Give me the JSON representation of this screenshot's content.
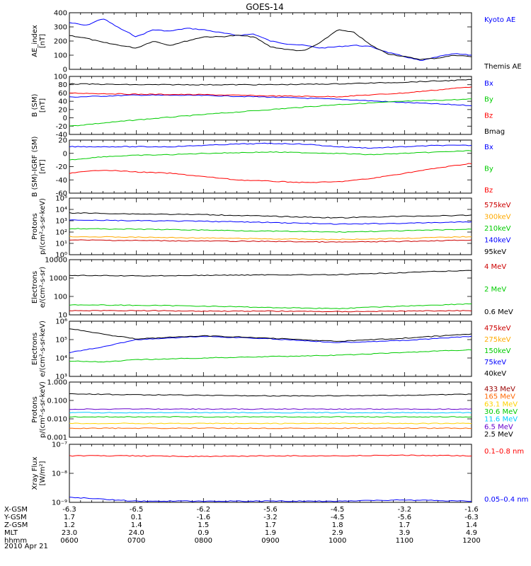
{
  "title": "GOES-14",
  "date": "2010 Apr 21",
  "time_labels": [
    "0600",
    "0700",
    "0800",
    "0900",
    "1000",
    "1100",
    "1200"
  ],
  "orbit_table": {
    "row_labels": [
      "X-GSM",
      "Y-GSM",
      "Z-GSM",
      "MLT",
      "hhmm"
    ],
    "rows": [
      [
        "-6.3",
        "-6.5",
        "-6.2",
        "-5.6",
        "-4.5",
        "-3.2",
        "-1.6"
      ],
      [
        "1.7",
        "0.1",
        "-1.6",
        "-3.2",
        "-4.5",
        "-5.6",
        "-6.3"
      ],
      [
        "1.2",
        "1.4",
        "1.5",
        "1.7",
        "1.8",
        "1.7",
        "1.4"
      ],
      [
        "23.0",
        "24.0",
        "0.9",
        "1.9",
        "2.9",
        "3.9",
        "4.9"
      ]
    ]
  },
  "chart_data": [
    {
      "type": "line",
      "ylabel": [
        "AE_index",
        "[nT]"
      ],
      "yscale": "linear",
      "ylim": [
        0,
        400
      ],
      "yticks": [
        "0",
        "100",
        "200",
        "300",
        "400"
      ],
      "x": [
        6.0,
        6.25,
        6.5,
        6.75,
        7.0,
        7.25,
        7.5,
        7.75,
        8.0,
        8.25,
        8.5,
        8.75,
        9.0,
        9.25,
        9.5,
        9.75,
        10.0,
        10.25,
        10.5,
        10.75,
        11.0,
        11.25,
        11.5,
        11.75,
        12.0
      ],
      "series": [
        {
          "name": "Kyoto AE",
          "color": "#0000ff",
          "values": [
            330,
            310,
            360,
            290,
            230,
            280,
            270,
            290,
            280,
            260,
            240,
            250,
            200,
            180,
            170,
            150,
            160,
            170,
            160,
            120,
            90,
            60,
            90,
            110,
            100
          ]
        },
        {
          "name": "Themis AE",
          "color": "#000000",
          "values": [
            240,
            220,
            190,
            170,
            150,
            200,
            170,
            200,
            230,
            230,
            240,
            230,
            160,
            140,
            130,
            190,
            280,
            260,
            170,
            110,
            90,
            70,
            80,
            100,
            90
          ]
        }
      ]
    },
    {
      "type": "line",
      "ylabel": [
        "B (SM)",
        "[nT]"
      ],
      "yscale": "linear",
      "ylim": [
        -40,
        100
      ],
      "yticks": [
        "-40",
        "-20",
        "0",
        "20",
        "40",
        "60",
        "80",
        "100"
      ],
      "x": [
        6,
        7,
        8,
        9,
        10,
        11,
        12
      ],
      "series": [
        {
          "name": "Bx",
          "color": "#0000ff",
          "values": [
            50,
            55,
            54,
            50,
            45,
            37,
            30
          ]
        },
        {
          "name": "By",
          "color": "#00cc00",
          "values": [
            -20,
            -5,
            8,
            20,
            32,
            40,
            45
          ]
        },
        {
          "name": "Bz",
          "color": "#ff0000",
          "values": [
            60,
            57,
            56,
            53,
            51,
            60,
            75
          ]
        },
        {
          "name": "Bmag",
          "color": "#000000",
          "values": [
            82,
            80,
            80,
            80,
            82,
            86,
            92
          ]
        }
      ]
    },
    {
      "type": "line",
      "ylabel": [
        "B (SM)-IGRF (SM)",
        "[nT]"
      ],
      "yscale": "linear",
      "ylim": [
        -60,
        20
      ],
      "yticks": [
        "-60",
        "-40",
        "-20",
        "0",
        "20"
      ],
      "x": [
        6,
        6.5,
        7,
        7.5,
        8,
        8.5,
        9,
        9.5,
        10,
        10.5,
        11,
        11.5,
        12
      ],
      "series": [
        {
          "name": "Bx",
          "color": "#0000ff",
          "values": [
            10,
            10,
            10,
            10,
            12,
            14,
            15,
            14,
            10,
            8,
            10,
            12,
            12
          ]
        },
        {
          "name": "By",
          "color": "#00cc00",
          "values": [
            -10,
            -5,
            -3,
            -2,
            0,
            1,
            2,
            1,
            0,
            -2,
            0,
            2,
            4
          ]
        },
        {
          "name": "Bz",
          "color": "#ff0000",
          "values": [
            -30,
            -25,
            -28,
            -30,
            -35,
            -40,
            -42,
            -44,
            -43,
            -38,
            -30,
            -22,
            -15
          ]
        }
      ]
    },
    {
      "type": "line",
      "ylabel": [
        "Protons",
        "p/(cm²-s-sr-keV)"
      ],
      "yscale": "log",
      "ylim": [
        1,
        100000
      ],
      "yticks": [
        "10⁰",
        "10¹",
        "10²",
        "10³",
        "10⁴",
        "10⁵"
      ],
      "x": [
        6,
        7,
        8,
        9,
        10,
        11,
        12
      ],
      "series": [
        {
          "name": "575keV",
          "color": "#cc0000",
          "values": [
            20,
            18,
            16,
            15,
            13,
            15,
            20
          ]
        },
        {
          "name": "300keV",
          "color": "#ffaa00",
          "values": [
            40,
            35,
            30,
            25,
            22,
            28,
            40
          ]
        },
        {
          "name": "210keV",
          "color": "#00cc00",
          "values": [
            200,
            180,
            150,
            120,
            100,
            130,
            180
          ]
        },
        {
          "name": "140keV",
          "color": "#0000ff",
          "values": [
            1200,
            1000,
            900,
            700,
            500,
            600,
            800
          ]
        },
        {
          "name": "95keV",
          "color": "#000000",
          "values": [
            5000,
            4000,
            3500,
            2500,
            1800,
            2500,
            3000
          ]
        }
      ]
    },
    {
      "type": "line",
      "ylabel": [
        "Electrons",
        "e/(cm²-s-sr)"
      ],
      "yscale": "log",
      "ylim": [
        10,
        10000
      ],
      "yticks": [
        "10",
        "100",
        "1000",
        "10000"
      ],
      "x": [
        6,
        7,
        8,
        9,
        10,
        11,
        12
      ],
      "series": [
        {
          "name": "4 MeV",
          "color": "#cc0000",
          "values": [
            17,
            17,
            16,
            16,
            15,
            16,
            17
          ]
        },
        {
          "name": "2 MeV",
          "color": "#00cc00",
          "values": [
            35,
            33,
            30,
            25,
            22,
            30,
            40
          ]
        },
        {
          "name": "0.6 MeV",
          "color": "#000000",
          "values": [
            1400,
            1300,
            1400,
            1500,
            1500,
            2000,
            2600
          ]
        }
      ]
    },
    {
      "type": "line",
      "ylabel": [
        "Electrons",
        "e/(cm²-s-sr-keV)"
      ],
      "yscale": "log",
      "ylim": [
        1000,
        1000000
      ],
      "yticks": [
        "10³",
        "10⁴",
        "10⁵",
        "10⁶"
      ],
      "x": [
        6,
        6.5,
        7,
        8,
        9,
        10,
        11,
        12
      ],
      "series": [
        {
          "name": "475keV",
          "color": "#cc0000",
          "values": [
            null,
            null,
            null,
            null,
            null,
            null,
            null,
            null
          ]
        },
        {
          "name": "275keV",
          "color": "#ffaa00",
          "values": [
            null,
            null,
            null,
            null,
            null,
            null,
            null,
            null
          ]
        },
        {
          "name": "150keV",
          "color": "#00cc00",
          "values": [
            7000,
            6000,
            8000,
            10000,
            12000,
            14000,
            20000,
            28000
          ]
        },
        {
          "name": "75keV",
          "color": "#0000ff",
          "values": [
            20000,
            40000,
            100000,
            150000,
            110000,
            70000,
            90000,
            150000
          ]
        },
        {
          "name": "40keV",
          "color": "#000000",
          "values": [
            400000,
            200000,
            110000,
            160000,
            120000,
            80000,
            120000,
            200000
          ]
        }
      ]
    },
    {
      "type": "line",
      "ylabel": [
        "Protons",
        "p/(cm²-s-sr-keV)"
      ],
      "yscale": "log",
      "ylim": [
        0.001,
        10
      ],
      "yticks": [
        "0.001",
        "0.010",
        "0.100",
        "1.000"
      ],
      "x": [
        6,
        7,
        8,
        9,
        10,
        11,
        12
      ],
      "series": [
        {
          "name": "433 MeV",
          "color": "#990000",
          "values": [
            null,
            null,
            null,
            null,
            null,
            null,
            null
          ]
        },
        {
          "name": "165 MeV",
          "color": "#ff6600",
          "values": [
            0.0045,
            0.0045,
            0.0045,
            0.0045,
            0.0045,
            0.0045,
            0.0045
          ]
        },
        {
          "name": "63.1 MeV",
          "color": "#ffd200",
          "values": [
            0.01,
            0.01,
            0.01,
            0.01,
            0.01,
            0.01,
            0.01
          ]
        },
        {
          "name": "30.6 MeV",
          "color": "#00cc00",
          "values": [
            0.03,
            0.03,
            0.03,
            0.03,
            0.03,
            0.03,
            0.03
          ]
        },
        {
          "name": "11.6 MeV",
          "color": "#00ccff",
          "values": [
            0.06,
            0.06,
            0.06,
            0.06,
            0.06,
            0.06,
            0.06
          ]
        },
        {
          "name": "6.5 MeV",
          "color": "#6600cc",
          "values": [
            0.11,
            0.11,
            0.11,
            0.11,
            0.11,
            0.11,
            0.11
          ]
        },
        {
          "name": "2.5 MeV",
          "color": "#000000",
          "values": [
            1.4,
            1.2,
            1.1,
            1.0,
            1.0,
            1.1,
            1.3
          ]
        }
      ]
    },
    {
      "type": "line",
      "ylabel": [
        "Xray Flux",
        "[W/m²]"
      ],
      "yscale": "log",
      "ylim": [
        1e-09,
        1e-07
      ],
      "yticks": [
        "10⁻⁹",
        "10⁻⁸",
        "10⁻⁷"
      ],
      "x": [
        6,
        7,
        8,
        9,
        10,
        11,
        12
      ],
      "series": [
        {
          "name": "0.1–0.8 nm",
          "color": "#ff0000",
          "values": [
            4e-08,
            4e-08,
            3.8e-08,
            4e-08,
            4e-08,
            4.2e-08,
            4e-08
          ]
        },
        {
          "name": "0.05–0.4 nm",
          "color": "#0000ff",
          "values": [
            1.5e-09,
            1.1e-09,
            1.1e-09,
            1.1e-09,
            1.1e-09,
            1.2e-09,
            1.1e-09
          ]
        }
      ]
    }
  ]
}
